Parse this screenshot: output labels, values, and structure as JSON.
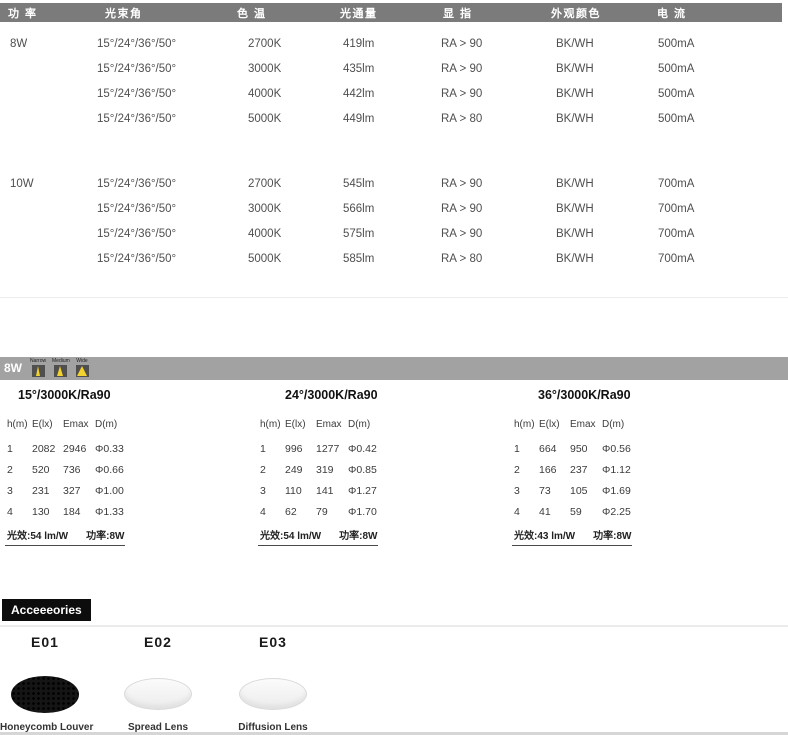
{
  "colors": {
    "header_bar": "#7b7b7b",
    "section_bar": "#a2a2a2",
    "beam_accent": "#f2d22e",
    "accessory_label_bg": "#0d0d0d"
  },
  "spec_table": {
    "headers": [
      "功 率",
      "光束角",
      "色 温",
      "光通量",
      "显 指",
      "外观颜色",
      "电 流"
    ],
    "groups": [
      {
        "power": "8W",
        "rows": [
          {
            "beam": "15°/24°/36°/50°",
            "cct": "2700K",
            "flux": "419lm",
            "cri": "RA > 90",
            "finish": "BK/WH",
            "current": "500mA"
          },
          {
            "beam": "15°/24°/36°/50°",
            "cct": "3000K",
            "flux": "435lm",
            "cri": "RA > 90",
            "finish": "BK/WH",
            "current": "500mA"
          },
          {
            "beam": "15°/24°/36°/50°",
            "cct": "4000K",
            "flux": "442lm",
            "cri": "RA > 90",
            "finish": "BK/WH",
            "current": "500mA"
          },
          {
            "beam": "15°/24°/36°/50°",
            "cct": "5000K",
            "flux": "449lm",
            "cri": "RA > 80",
            "finish": "BK/WH",
            "current": "500mA"
          }
        ]
      },
      {
        "power": "10W",
        "rows": [
          {
            "beam": "15°/24°/36°/50°",
            "cct": "2700K",
            "flux": "545lm",
            "cri": "RA > 90",
            "finish": "BK/WH",
            "current": "700mA"
          },
          {
            "beam": "15°/24°/36°/50°",
            "cct": "3000K",
            "flux": "566lm",
            "cri": "RA > 90",
            "finish": "BK/WH",
            "current": "700mA"
          },
          {
            "beam": "15°/24°/36°/50°",
            "cct": "4000K",
            "flux": "575lm",
            "cri": "RA > 90",
            "finish": "BK/WH",
            "current": "700mA"
          },
          {
            "beam": "15°/24°/36°/50°",
            "cct": "5000K",
            "flux": "585lm",
            "cri": "RA > 80",
            "finish": "BK/WH",
            "current": "700mA"
          }
        ]
      }
    ]
  },
  "photometric": {
    "bar_label": "8W",
    "beam_icons": [
      {
        "label": "Narrow"
      },
      {
        "label": "Medium"
      },
      {
        "label": "Wide"
      }
    ],
    "tables": [
      {
        "title": "15°/3000K/Ra90",
        "headers": [
          "h(m)",
          "E(lx)",
          "Emax",
          "D(m)"
        ],
        "rows": [
          [
            "1",
            "2082",
            "2946",
            "Φ0.33"
          ],
          [
            "2",
            "520",
            "736",
            "Φ0.66"
          ],
          [
            "3",
            "231",
            "327",
            "Φ1.00"
          ],
          [
            "4",
            "130",
            "184",
            "Φ1.33"
          ]
        ],
        "efficacy": "光效:54 lm/W",
        "power": "功率:8W"
      },
      {
        "title": "24°/3000K/Ra90",
        "headers": [
          "h(m)",
          "E(lx)",
          "Emax",
          "D(m)"
        ],
        "rows": [
          [
            "1",
            "996",
            "1277",
            "Φ0.42"
          ],
          [
            "2",
            "249",
            "319",
            "Φ0.85"
          ],
          [
            "3",
            "110",
            "141",
            "Φ1.27"
          ],
          [
            "4",
            "62",
            "79",
            "Φ1.70"
          ]
        ],
        "efficacy": "光效:54 lm/W",
        "power": "功率:8W"
      },
      {
        "title": "36°/3000K/Ra90",
        "headers": [
          "h(m)",
          "E(lx)",
          "Emax",
          "D(m)"
        ],
        "rows": [
          [
            "1",
            "664",
            "950",
            "Φ0.56"
          ],
          [
            "2",
            "166",
            "237",
            "Φ1.12"
          ],
          [
            "3",
            "73",
            "105",
            "Φ1.69"
          ],
          [
            "4",
            "41",
            "59",
            "Φ2.25"
          ]
        ],
        "efficacy": "光效:43 lm/W",
        "power": "功率:8W"
      }
    ]
  },
  "accessories": {
    "title": "Acceeeories",
    "items": [
      {
        "code": "E01",
        "name": "Honeycomb Louver"
      },
      {
        "code": "E02",
        "name": "Spread Lens"
      },
      {
        "code": "E03",
        "name": "Diffusion Lens"
      }
    ]
  }
}
